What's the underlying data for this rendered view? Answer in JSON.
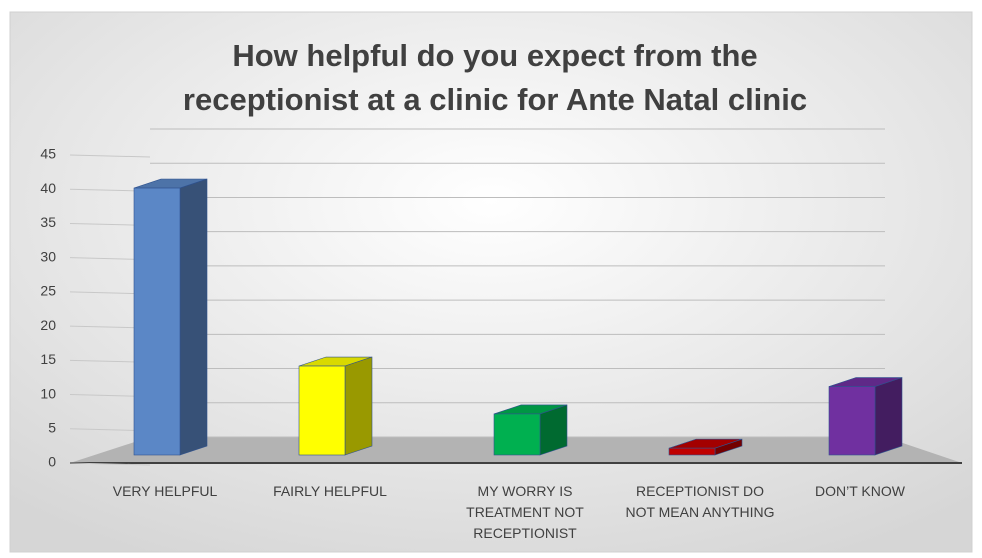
{
  "chart_data": {
    "type": "bar3d",
    "title": "How helpful do you expect from the receptionist at a clinic for Ante Natal clinic",
    "categories": [
      "VERY HELPFUL",
      "FAIRLY HELPFUL",
      "MY WORRY IS TREATMENT NOT RECEPTIONIST",
      "RECEPTIONIST DO NOT MEAN ANYTHING",
      "DON’T KNOW"
    ],
    "values": [
      39,
      13,
      6,
      1,
      10
    ],
    "colors": [
      "#5b87c6",
      "#ffff00",
      "#00b050",
      "#c00000",
      "#7030a0"
    ],
    "ylim": [
      0,
      45
    ],
    "yticks": [
      0,
      5,
      10,
      15,
      20,
      25,
      30,
      35,
      40,
      45
    ],
    "grid": true
  }
}
